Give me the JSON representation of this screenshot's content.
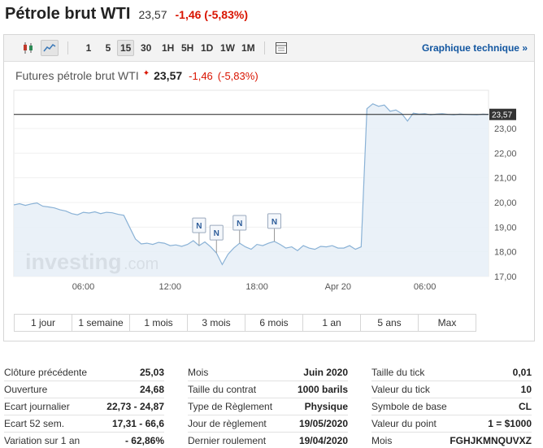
{
  "header": {
    "title": "Pétrole brut WTI",
    "price": "23,57",
    "change": "-1,46 (-5,83%)"
  },
  "toolbar": {
    "icons": [
      "candlestick-chart-icon",
      "area-chart-icon",
      "table-icon"
    ],
    "intervals": [
      {
        "label": "1",
        "selected": false
      },
      {
        "label": "5",
        "selected": false
      },
      {
        "label": "15",
        "selected": true
      },
      {
        "label": "30",
        "selected": false
      },
      {
        "label": "1H",
        "selected": false
      },
      {
        "label": "5H",
        "selected": false
      },
      {
        "label": "1D",
        "selected": false
      },
      {
        "label": "1W",
        "selected": false
      },
      {
        "label": "1M",
        "selected": false
      }
    ],
    "tech_link": "Graphique technique »"
  },
  "chart_title": {
    "name": "Futures pétrole brut WTI",
    "star": "✦",
    "price": "23,57",
    "change": "-1,46",
    "percent": "(-5,83%)"
  },
  "chart_data": {
    "type": "area",
    "series": [
      {
        "values": [
          19.9,
          19.95,
          19.88,
          19.94,
          19.98,
          19.85,
          19.82,
          19.78,
          19.7,
          19.65,
          19.55,
          19.5,
          19.6,
          19.57,
          19.62,
          19.55,
          19.6,
          19.58,
          19.52,
          19.48,
          19.0,
          18.52,
          18.32,
          18.35,
          18.3,
          18.38,
          18.35,
          18.25,
          18.28,
          18.22,
          18.3,
          18.45,
          18.25,
          18.4,
          18.2,
          17.95,
          17.48,
          17.9,
          18.15,
          18.35,
          18.2,
          18.1,
          18.3,
          18.25,
          18.35,
          18.42,
          18.3,
          18.15,
          18.2,
          18.05,
          18.25,
          18.15,
          18.1,
          18.22,
          18.2,
          18.25,
          18.15,
          18.15,
          18.25,
          18.1,
          18.2,
          23.8,
          24.0,
          23.9,
          23.95,
          23.7,
          23.75,
          23.6,
          23.3,
          23.62,
          23.58,
          23.6,
          23.55,
          23.58,
          23.6,
          23.57,
          23.55,
          23.58,
          23.57,
          23.56,
          23.55,
          23.58,
          23.57
        ]
      }
    ],
    "y_ticks": [
      "17,00",
      "18,00",
      "19,00",
      "20,00",
      "21,00",
      "22,00",
      "23,00"
    ],
    "ylim": [
      17.0,
      24.55
    ],
    "x_ticks": [
      {
        "label": "06:00",
        "index": 12
      },
      {
        "label": "12:00",
        "index": 27
      },
      {
        "label": "18:00",
        "index": 42
      },
      {
        "label": "Apr 20",
        "index": 56
      },
      {
        "label": "06:00",
        "index": 71
      }
    ],
    "last_value": 23.57,
    "last_value_label": "23,57",
    "news_markers": [
      {
        "label": "N",
        "index": 32
      },
      {
        "label": "N",
        "index": 35
      },
      {
        "label": "N",
        "index": 39
      },
      {
        "label": "N",
        "index": 45
      }
    ],
    "watermark": {
      "brand": "investing",
      "suffix": ".com"
    },
    "colors": {
      "line": "#8ab2d6",
      "fill": "#e6eff7",
      "last_line": "#222222",
      "badge": "#333333"
    }
  },
  "periods": [
    "1 jour",
    "1 semaine",
    "1 mois",
    "3 mois",
    "6 mois",
    "1 an",
    "5 ans",
    "Max"
  ],
  "stats": {
    "col1": [
      {
        "label": "Clôture précédente",
        "value": "25,03"
      },
      {
        "label": "Ouverture",
        "value": "24,68"
      },
      {
        "label": "Ecart journalier",
        "value": "22,73 - 24,87"
      },
      {
        "label": "Ecart 52 sem.",
        "value": "17,31 - 66,6"
      },
      {
        "label": "Variation sur 1 an",
        "value": "- 62,86%"
      }
    ],
    "col2": [
      {
        "label": "Mois",
        "value": "Juin 2020"
      },
      {
        "label": "Taille du contrat",
        "value": "1000 barils"
      },
      {
        "label": "Type de Règlement",
        "value": "Physique"
      },
      {
        "label": "Jour de règlement",
        "value": "19/05/2020"
      },
      {
        "label": "Dernier roulement",
        "value": "19/04/2020"
      }
    ],
    "col3": [
      {
        "label": "Taille du tick",
        "value": "0,01"
      },
      {
        "label": "Valeur du tick",
        "value": "10"
      },
      {
        "label": "Symbole de base",
        "value": "CL"
      },
      {
        "label": "Valeur du point",
        "value": "1 = $1000"
      },
      {
        "label": "Mois",
        "value": "FGHJKMNQUVXZ"
      }
    ]
  }
}
